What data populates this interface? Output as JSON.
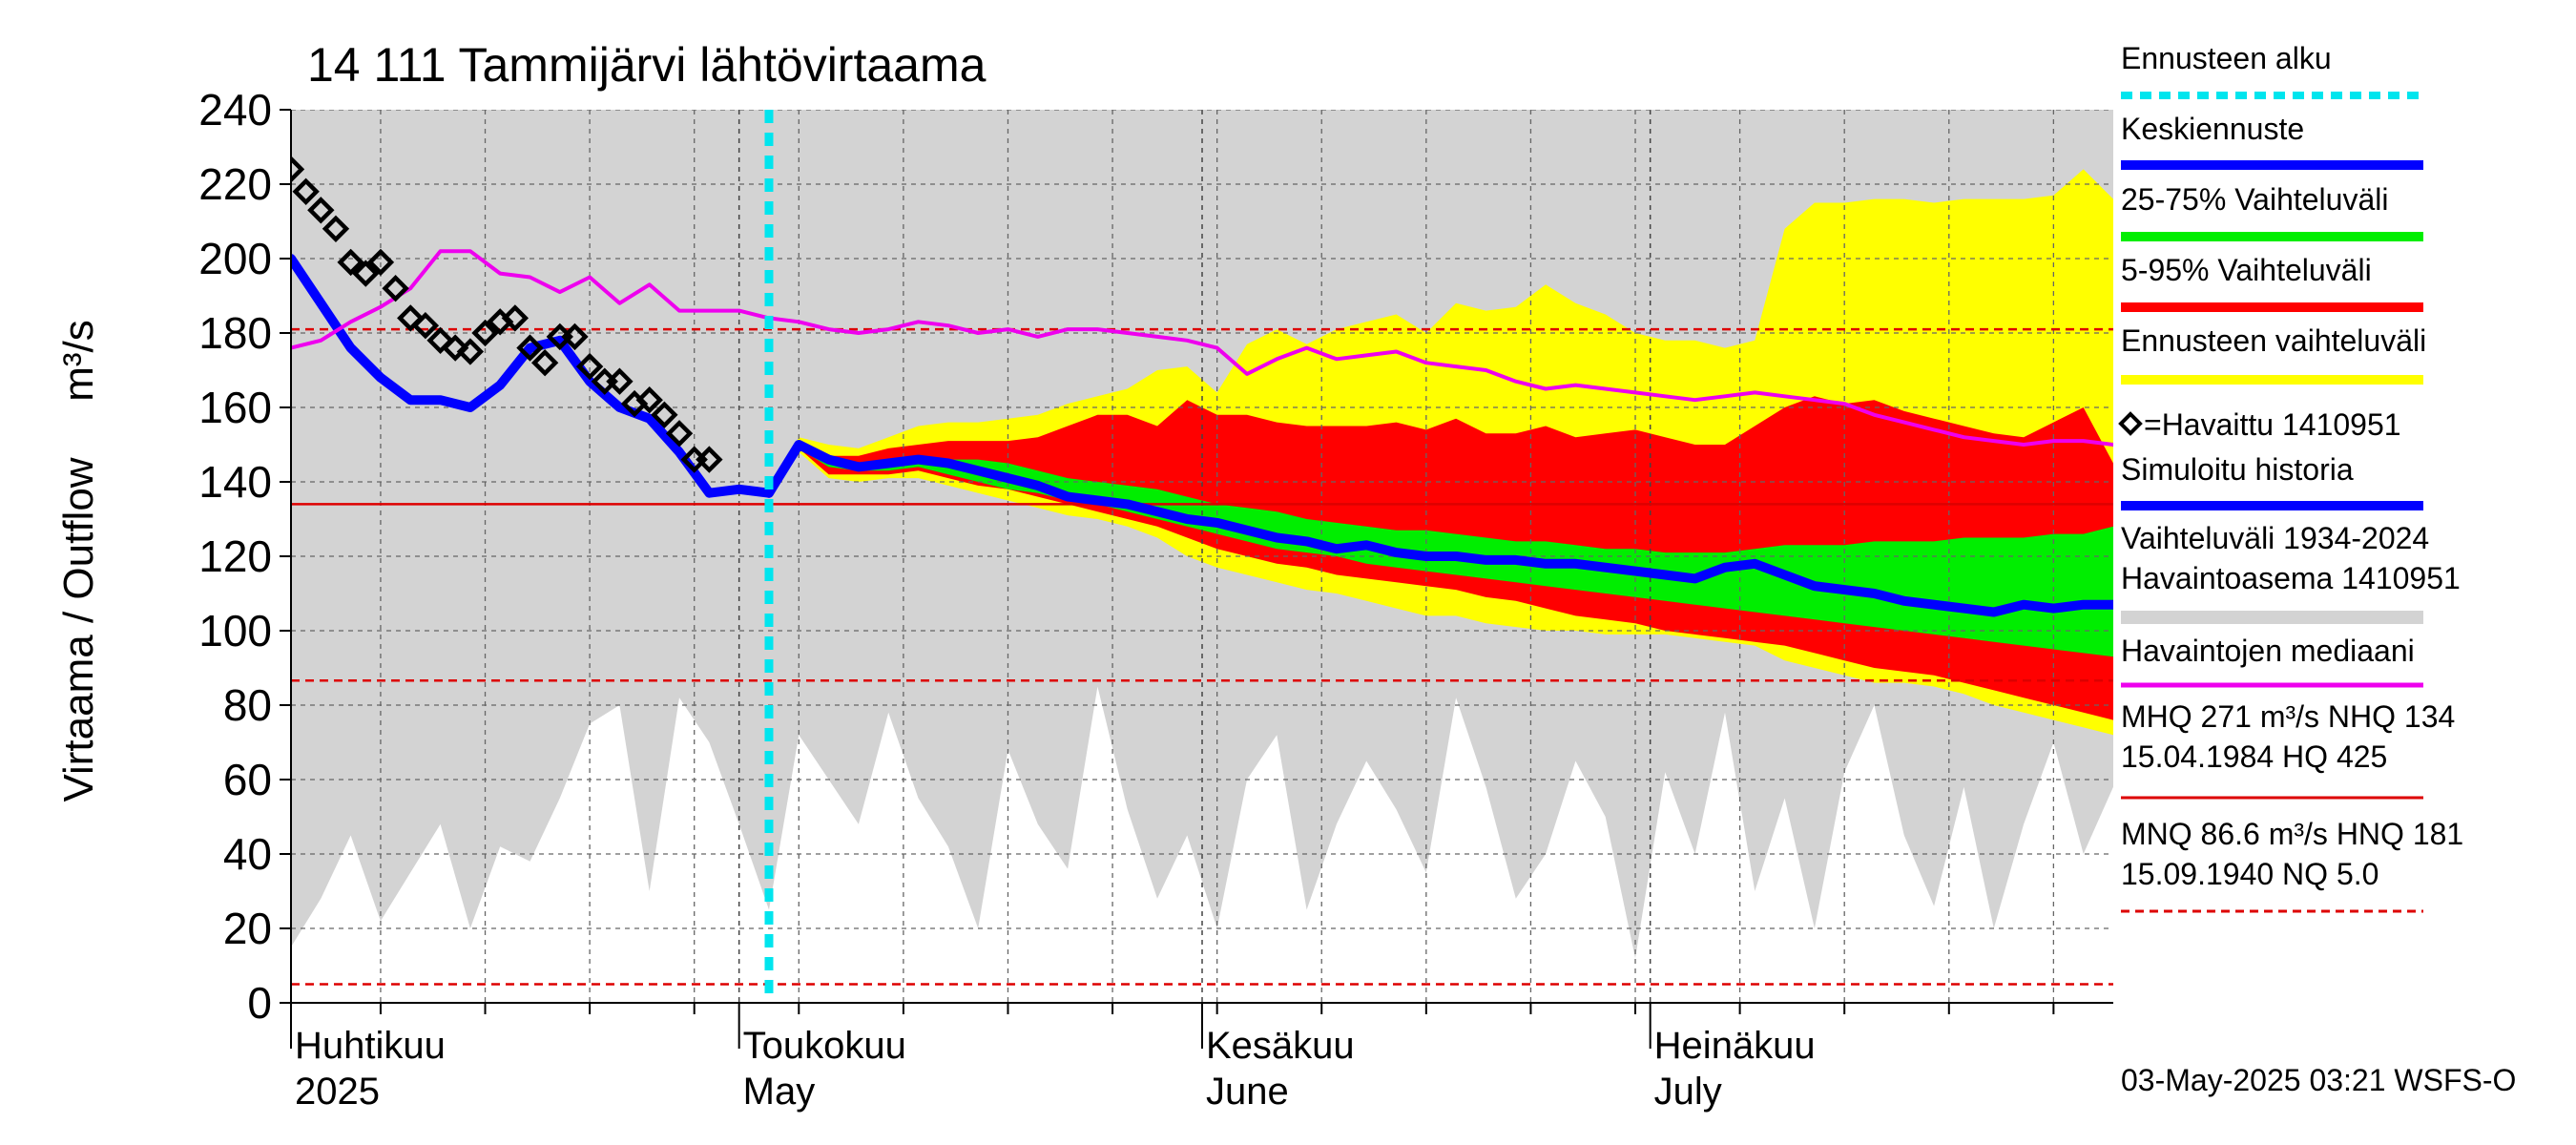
{
  "chart_data": {
    "type": "area",
    "title": "14 111 Tammijärvi lähtövirtaama",
    "ylabel": "Virtaama / Outflow",
    "yunit": "m³/s",
    "ylim": [
      0,
      240
    ],
    "yticks": [
      0,
      20,
      40,
      60,
      80,
      100,
      120,
      140,
      160,
      180,
      200,
      220,
      240
    ],
    "xlim": [
      "2025-04-01",
      "2025-08-01"
    ],
    "xticks_major": [
      {
        "date": "2025-04-01",
        "label1": "Huhtikuu",
        "label2": "2025"
      },
      {
        "date": "2025-05-01",
        "label1": "Toukokuu",
        "label2": "May"
      },
      {
        "date": "2025-06-01",
        "label1": "Kesäkuu",
        "label2": "June"
      },
      {
        "date": "2025-07-01",
        "label1": "Heinäkuu",
        "label2": "July"
      }
    ],
    "forecast_start": "2025-05-03",
    "grid": true,
    "legend_position": "right",
    "legend": [
      {
        "label": "Ennusteen alku",
        "color": "#00e5ee",
        "style": "dotted"
      },
      {
        "label": "Keskiennuste",
        "color": "#0000ff",
        "style": "solid"
      },
      {
        "label": "25-75% Vaihteluväli",
        "color": "#00ee00",
        "style": "solid"
      },
      {
        "label": "5-95% Vaihteluväli",
        "color": "#ff0000",
        "style": "solid"
      },
      {
        "label": "Ennusteen vaihteluväli",
        "color": "#ffff00",
        "style": "solid"
      },
      {
        "label": "=Havaittu 1410951",
        "color": "#000000",
        "style": "marker"
      },
      {
        "label": "Simuloitu historia",
        "color": "#0000ff",
        "style": "solid"
      },
      {
        "label": "Vaihteluväli 1934-2024",
        "label2": " Havaintoasema 1410951",
        "color": "#d3d3d3",
        "style": "solid"
      },
      {
        "label": "Havaintojen mediaani",
        "color": "#ee00ee",
        "style": "solid"
      },
      {
        "label": "MHQ  271 m³/s NHQ  134",
        "label2": "15.04.1984 HQ  425",
        "color": "#dd0000",
        "style": "solid"
      },
      {
        "label": "MNQ 86.6 m³/s HNQ  181",
        "label2": "15.09.1940 NQ  5.0",
        "color": "#dd0000",
        "style": "dashed"
      }
    ],
    "reference_lines": [
      {
        "name": "NHQ",
        "value": 134,
        "style": "solid",
        "color": "#dd0000"
      },
      {
        "name": "HNQ",
        "value": 181,
        "style": "dashed",
        "color": "#dd0000"
      },
      {
        "name": "MNQ",
        "value": 86.6,
        "style": "dashed",
        "color": "#dd0000"
      },
      {
        "name": "NQ",
        "value": 5.0,
        "style": "dashed",
        "color": "#dd0000"
      }
    ],
    "hist_range_1934_2024": {
      "color": "#d3d3d3",
      "upper": 240,
      "lower_x": [
        "2025-04-01",
        "2025-04-03",
        "2025-04-05",
        "2025-04-07",
        "2025-04-09",
        "2025-04-11",
        "2025-04-13",
        "2025-04-15",
        "2025-04-17",
        "2025-04-19",
        "2025-04-21",
        "2025-04-23",
        "2025-04-25",
        "2025-04-27",
        "2025-04-29",
        "2025-05-01",
        "2025-05-03",
        "2025-05-05",
        "2025-05-07",
        "2025-05-09",
        "2025-05-11",
        "2025-05-13",
        "2025-05-15",
        "2025-05-17",
        "2025-05-19",
        "2025-05-21",
        "2025-05-23",
        "2025-05-25",
        "2025-05-27",
        "2025-05-29",
        "2025-05-31",
        "2025-06-02",
        "2025-06-04",
        "2025-06-06",
        "2025-06-08",
        "2025-06-10",
        "2025-06-12",
        "2025-06-14",
        "2025-06-16",
        "2025-06-18",
        "2025-06-20",
        "2025-06-22",
        "2025-06-24",
        "2025-06-26",
        "2025-06-28",
        "2025-06-30",
        "2025-07-02",
        "2025-07-04",
        "2025-07-06",
        "2025-07-08",
        "2025-07-10",
        "2025-07-12",
        "2025-07-14",
        "2025-07-16",
        "2025-07-18",
        "2025-07-20",
        "2025-07-22",
        "2025-07-24",
        "2025-07-26",
        "2025-07-28",
        "2025-07-30",
        "2025-08-01"
      ],
      "lower": [
        15,
        28,
        45,
        22,
        35,
        48,
        20,
        42,
        38,
        55,
        75,
        80,
        30,
        82,
        70,
        48,
        25,
        72,
        60,
        48,
        78,
        55,
        42,
        20,
        68,
        48,
        36,
        85,
        52,
        28,
        45,
        20,
        60,
        72,
        25,
        48,
        65,
        52,
        35,
        82,
        58,
        28,
        40,
        65,
        50,
        12,
        62,
        40,
        78,
        30,
        55,
        20,
        62,
        80,
        45,
        26,
        58,
        20,
        48,
        70,
        40,
        58
      ]
    },
    "forecast_x": [
      "2025-05-03",
      "2025-05-05",
      "2025-05-07",
      "2025-05-09",
      "2025-05-11",
      "2025-05-13",
      "2025-05-15",
      "2025-05-17",
      "2025-05-19",
      "2025-05-21",
      "2025-05-23",
      "2025-05-25",
      "2025-05-27",
      "2025-05-29",
      "2025-05-31",
      "2025-06-02",
      "2025-06-04",
      "2025-06-06",
      "2025-06-08",
      "2025-06-10",
      "2025-06-12",
      "2025-06-14",
      "2025-06-16",
      "2025-06-18",
      "2025-06-20",
      "2025-06-22",
      "2025-06-24",
      "2025-06-26",
      "2025-06-28",
      "2025-06-30",
      "2025-07-02",
      "2025-07-04",
      "2025-07-06",
      "2025-07-08",
      "2025-07-10",
      "2025-07-12",
      "2025-07-14",
      "2025-07-16",
      "2025-07-18",
      "2025-07-20",
      "2025-07-22",
      "2025-07-24",
      "2025-07-26",
      "2025-07-28",
      "2025-07-30",
      "2025-08-01"
    ],
    "forecast_range": {
      "color": "#ffff00",
      "upper": [
        137,
        152,
        150,
        149,
        152,
        155,
        156,
        156,
        157,
        158,
        161,
        163,
        165,
        170,
        171,
        164,
        177,
        181,
        177,
        181,
        183,
        185,
        180,
        188,
        186,
        187,
        193,
        188,
        185,
        180,
        178,
        178,
        176,
        178,
        208,
        215,
        215,
        216,
        216,
        215,
        216,
        216,
        216,
        217,
        224,
        216
      ],
      "lower": [
        137,
        148,
        141,
        140,
        141,
        141,
        139,
        137,
        135,
        133,
        131,
        130,
        128,
        125,
        120,
        117,
        115,
        113,
        111,
        110,
        108,
        106,
        104,
        104,
        102,
        101,
        100,
        100,
        99,
        99,
        99,
        98,
        97,
        96,
        92,
        90,
        88,
        86,
        86,
        85,
        83,
        80,
        78,
        76,
        74,
        72
      ]
    },
    "band_5_95": {
      "color": "#ff0000",
      "upper": [
        137,
        150,
        147,
        147,
        149,
        150,
        151,
        151,
        151,
        152,
        155,
        158,
        158,
        155,
        162,
        158,
        158,
        156,
        155,
        155,
        155,
        156,
        154,
        157,
        153,
        153,
        155,
        152,
        153,
        154,
        152,
        150,
        150,
        155,
        160,
        163,
        161,
        162,
        159,
        157,
        155,
        153,
        152,
        156,
        160,
        145
      ],
      "lower": [
        137,
        149,
        142,
        142,
        142,
        143,
        141,
        139,
        138,
        136,
        134,
        132,
        130,
        128,
        125,
        122,
        120,
        118,
        117,
        115,
        114,
        113,
        112,
        111,
        109,
        108,
        106,
        104,
        103,
        102,
        100,
        99,
        98,
        97,
        96,
        94,
        92,
        90,
        89,
        88,
        86,
        84,
        82,
        80,
        78,
        76
      ]
    },
    "band_25_75": {
      "color": "#00ee00",
      "upper": [
        137,
        150,
        146,
        145,
        146,
        147,
        146,
        146,
        145,
        143,
        141,
        140,
        139,
        138,
        136,
        134,
        133,
        132,
        130,
        129,
        128,
        127,
        127,
        126,
        125,
        124,
        124,
        123,
        122,
        122,
        121,
        121,
        121,
        122,
        123,
        123,
        123,
        124,
        124,
        124,
        125,
        125,
        125,
        126,
        126,
        128
      ],
      "lower": [
        137,
        149,
        144,
        143,
        143,
        144,
        142,
        140,
        138,
        137,
        135,
        134,
        132,
        130,
        128,
        126,
        124,
        122,
        121,
        120,
        118,
        117,
        116,
        115,
        114,
        113,
        112,
        111,
        110,
        109,
        108,
        107,
        106,
        105,
        104,
        103,
        102,
        101,
        100,
        99,
        98,
        97,
        96,
        95,
        94,
        93
      ]
    },
    "series": [
      {
        "name": "Keskiennuste",
        "color": "#0000ff",
        "x": [
          "2025-05-03",
          "2025-05-05",
          "2025-05-07",
          "2025-05-09",
          "2025-05-11",
          "2025-05-13",
          "2025-05-15",
          "2025-05-17",
          "2025-05-19",
          "2025-05-21",
          "2025-05-23",
          "2025-05-25",
          "2025-05-27",
          "2025-05-29",
          "2025-05-31",
          "2025-06-02",
          "2025-06-04",
          "2025-06-06",
          "2025-06-08",
          "2025-06-10",
          "2025-06-12",
          "2025-06-14",
          "2025-06-16",
          "2025-06-18",
          "2025-06-20",
          "2025-06-22",
          "2025-06-24",
          "2025-06-26",
          "2025-06-28",
          "2025-06-30",
          "2025-07-02",
          "2025-07-04",
          "2025-07-06",
          "2025-07-08",
          "2025-07-10",
          "2025-07-12",
          "2025-07-14",
          "2025-07-16",
          "2025-07-18",
          "2025-07-20",
          "2025-07-22",
          "2025-07-24",
          "2025-07-26",
          "2025-07-28",
          "2025-07-30",
          "2025-08-01"
        ],
        "y": [
          137,
          150,
          146,
          144,
          145,
          146,
          145,
          143,
          141,
          139,
          136,
          135,
          134,
          132,
          130,
          129,
          127,
          125,
          124,
          122,
          123,
          121,
          120,
          120,
          119,
          119,
          118,
          118,
          117,
          116,
          115,
          114,
          117,
          118,
          115,
          112,
          111,
          110,
          108,
          107,
          106,
          105,
          107,
          106,
          107,
          107
        ]
      },
      {
        "name": "Simuloitu historia",
        "color": "#0000ff",
        "x": [
          "2025-04-01",
          "2025-04-03",
          "2025-04-05",
          "2025-04-07",
          "2025-04-09",
          "2025-04-11",
          "2025-04-13",
          "2025-04-15",
          "2025-04-17",
          "2025-04-19",
          "2025-04-21",
          "2025-04-23",
          "2025-04-25",
          "2025-04-27",
          "2025-04-29",
          "2025-05-01",
          "2025-05-03"
        ],
        "y": [
          200,
          188,
          176,
          168,
          162,
          162,
          160,
          166,
          176,
          178,
          167,
          160,
          157,
          148,
          137,
          138,
          137
        ]
      },
      {
        "name": "Havaintojen mediaani",
        "color": "#ee00ee",
        "x": [
          "2025-04-01",
          "2025-04-03",
          "2025-04-05",
          "2025-04-07",
          "2025-04-09",
          "2025-04-11",
          "2025-04-13",
          "2025-04-15",
          "2025-04-17",
          "2025-04-19",
          "2025-04-21",
          "2025-04-23",
          "2025-04-25",
          "2025-04-27",
          "2025-04-29",
          "2025-05-01",
          "2025-05-03",
          "2025-05-05",
          "2025-05-07",
          "2025-05-09",
          "2025-05-11",
          "2025-05-13",
          "2025-05-15",
          "2025-05-17",
          "2025-05-19",
          "2025-05-21",
          "2025-05-23",
          "2025-05-25",
          "2025-05-27",
          "2025-05-29",
          "2025-05-31",
          "2025-06-02",
          "2025-06-04",
          "2025-06-06",
          "2025-06-08",
          "2025-06-10",
          "2025-06-12",
          "2025-06-14",
          "2025-06-16",
          "2025-06-18",
          "2025-06-20",
          "2025-06-22",
          "2025-06-24",
          "2025-06-26",
          "2025-06-28",
          "2025-06-30",
          "2025-07-02",
          "2025-07-04",
          "2025-07-06",
          "2025-07-08",
          "2025-07-10",
          "2025-07-12",
          "2025-07-14",
          "2025-07-16",
          "2025-07-18",
          "2025-07-20",
          "2025-07-22",
          "2025-07-24",
          "2025-07-26",
          "2025-07-28",
          "2025-07-30",
          "2025-08-01"
        ],
        "y": [
          176,
          178,
          183,
          187,
          192,
          202,
          202,
          196,
          195,
          191,
          195,
          188,
          193,
          186,
          186,
          186,
          184,
          183,
          181,
          180,
          181,
          183,
          182,
          180,
          181,
          179,
          181,
          181,
          180,
          179,
          178,
          176,
          169,
          173,
          176,
          173,
          174,
          175,
          172,
          171,
          170,
          167,
          165,
          166,
          165,
          164,
          163,
          162,
          163,
          164,
          163,
          162,
          161,
          158,
          156,
          154,
          152,
          151,
          150,
          151,
          151,
          150
        ]
      }
    ],
    "observed": {
      "name": "Havaittu 1410951",
      "color": "#000000",
      "x": [
        "2025-04-01",
        "2025-04-02",
        "2025-04-03",
        "2025-04-04",
        "2025-04-05",
        "2025-04-06",
        "2025-04-07",
        "2025-04-08",
        "2025-04-09",
        "2025-04-10",
        "2025-04-11",
        "2025-04-12",
        "2025-04-13",
        "2025-04-14",
        "2025-04-15",
        "2025-04-16",
        "2025-04-17",
        "2025-04-18",
        "2025-04-19",
        "2025-04-20",
        "2025-04-21",
        "2025-04-22",
        "2025-04-23",
        "2025-04-24",
        "2025-04-25",
        "2025-04-26",
        "2025-04-27",
        "2025-04-28",
        "2025-04-29"
      ],
      "y": [
        224,
        218,
        213,
        208,
        199,
        196,
        199,
        192,
        184,
        182,
        178,
        176,
        175,
        180,
        183,
        184,
        176,
        172,
        179,
        179,
        171,
        167,
        167,
        161,
        162,
        158,
        153,
        146,
        146
      ]
    }
  },
  "footer": {
    "timestamp": "03-May-2025 03:21 WSFS-O"
  }
}
